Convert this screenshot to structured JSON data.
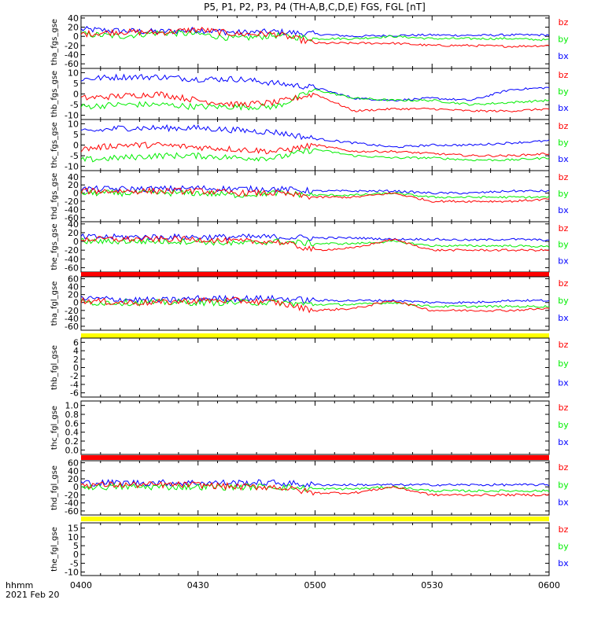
{
  "title": "P5, P1, P2, P3, P4 (TH-A,B,C,D,E) FGS, FGL [nT]",
  "time_axis": {
    "ticks": [
      "0400",
      "0430",
      "0500",
      "0530",
      "0600"
    ],
    "label": "hhmm",
    "date": "2021 Feb 20"
  },
  "legend": {
    "bz": "bz",
    "by": "by",
    "bx": "bx"
  },
  "colors": {
    "bx": "#0000ff",
    "by": "#00ee00",
    "bz": "#ff0000",
    "red_bar": "#ff0000",
    "yellow_bar": "#ffff00"
  },
  "chart_data": [
    {
      "type": "line",
      "label": "tha_fgs_gse",
      "ylim": [
        -70,
        45
      ],
      "yticks": [
        "40",
        "20",
        "0",
        "-20",
        "-40",
        "-60"
      ],
      "x": [
        "0400",
        "0410",
        "0420",
        "0430",
        "0440",
        "0450",
        "0500",
        "0510",
        "0520",
        "0530",
        "0540",
        "0550",
        "0600"
      ],
      "series": [
        {
          "name": "bx",
          "values": [
            15,
            12,
            10,
            14,
            8,
            10,
            5,
            0,
            2,
            3,
            2,
            3,
            3
          ]
        },
        {
          "name": "by",
          "values": [
            5,
            0,
            8,
            5,
            -5,
            2,
            -5,
            -5,
            0,
            -5,
            -5,
            -5,
            -8
          ]
        },
        {
          "name": "bz",
          "values": [
            5,
            10,
            8,
            15,
            5,
            5,
            -15,
            -15,
            -15,
            -20,
            -20,
            -22,
            -20
          ]
        }
      ],
      "bar_after": null
    },
    {
      "type": "line",
      "label": "thb_fgs_gse",
      "ylim": [
        -12,
        12
      ],
      "yticks": [
        "10",
        "5",
        "0",
        "-5",
        "-10"
      ],
      "x": [
        "0400",
        "0410",
        "0420",
        "0430",
        "0440",
        "0450",
        "0500",
        "0510",
        "0520",
        "0530",
        "0540",
        "0550",
        "0600"
      ],
      "series": [
        {
          "name": "bx",
          "values": [
            7,
            8,
            8,
            7,
            7,
            5,
            3,
            -2,
            -3,
            -2,
            -3,
            2,
            3
          ]
        },
        {
          "name": "by",
          "values": [
            -6,
            -5,
            -5,
            -6,
            -6,
            -6,
            2,
            -2,
            -3,
            -3,
            -5,
            -4,
            -3
          ]
        },
        {
          "name": "bz",
          "values": [
            -2,
            -1,
            0,
            -3,
            -5,
            -4,
            0,
            -8,
            -7,
            -7,
            -8,
            -8,
            -7
          ]
        }
      ],
      "bar_after": null
    },
    {
      "type": "line",
      "label": "thc_fgs_gse",
      "ylim": [
        -12,
        12
      ],
      "yticks": [
        "10",
        "5",
        "0",
        "-5",
        "-10"
      ],
      "x": [
        "0400",
        "0410",
        "0420",
        "0430",
        "0440",
        "0450",
        "0500",
        "0510",
        "0520",
        "0530",
        "0540",
        "0550",
        "0600"
      ],
      "series": [
        {
          "name": "bx",
          "values": [
            6,
            8,
            8,
            8,
            7,
            6,
            3,
            1,
            -1,
            0,
            0,
            1,
            2
          ]
        },
        {
          "name": "by",
          "values": [
            -7,
            -6,
            -5,
            -5,
            -6,
            -6,
            -2,
            -5,
            -6,
            -6,
            -7,
            -7,
            -6
          ]
        },
        {
          "name": "bz",
          "values": [
            -2,
            0,
            0,
            -1,
            -2,
            -3,
            0,
            -3,
            -3,
            -4,
            -5,
            -5,
            -4
          ]
        }
      ],
      "bar_after": null
    },
    {
      "type": "line",
      "label": "thd_fgs_gse",
      "ylim": [
        -70,
        55
      ],
      "yticks": [
        "40",
        "20",
        "0",
        "-20",
        "-40",
        "-60"
      ],
      "x": [
        "0400",
        "0410",
        "0420",
        "0430",
        "0440",
        "0450",
        "0500",
        "0510",
        "0520",
        "0530",
        "0540",
        "0550",
        "0600"
      ],
      "series": [
        {
          "name": "bx",
          "values": [
            10,
            10,
            10,
            12,
            10,
            10,
            5,
            5,
            5,
            0,
            0,
            5,
            5
          ]
        },
        {
          "name": "by",
          "values": [
            0,
            0,
            0,
            0,
            -5,
            0,
            -5,
            -5,
            0,
            -10,
            -10,
            -10,
            -10
          ]
        },
        {
          "name": "bz",
          "values": [
            5,
            5,
            5,
            5,
            0,
            0,
            -10,
            -10,
            0,
            -20,
            -20,
            -20,
            -15
          ]
        }
      ],
      "bar_after": null
    },
    {
      "type": "line",
      "label": "the_fgs_gse",
      "ylim": [
        -70,
        45
      ],
      "yticks": [
        "40",
        "20",
        "0",
        "-20",
        "-40",
        "-60"
      ],
      "x": [
        "0400",
        "0410",
        "0420",
        "0430",
        "0440",
        "0450",
        "0500",
        "0510",
        "0520",
        "0530",
        "0540",
        "0550",
        "0600"
      ],
      "series": [
        {
          "name": "bx",
          "values": [
            10,
            10,
            10,
            10,
            10,
            10,
            8,
            8,
            5,
            5,
            3,
            5,
            3
          ]
        },
        {
          "name": "by",
          "values": [
            0,
            0,
            0,
            0,
            -5,
            0,
            -5,
            -5,
            0,
            -10,
            -10,
            -10,
            -12
          ]
        },
        {
          "name": "bz",
          "values": [
            5,
            5,
            5,
            5,
            0,
            0,
            -20,
            -15,
            5,
            -20,
            -20,
            -20,
            -20
          ]
        }
      ],
      "bar_after": "red_bar"
    },
    {
      "type": "line",
      "label": "tha_fgl_gse",
      "ylim": [
        -70,
        65
      ],
      "yticks": [
        "60",
        "40",
        "20",
        "0",
        "-20",
        "-40",
        "-60"
      ],
      "x": [
        "0400",
        "0410",
        "0420",
        "0430",
        "0440",
        "0450",
        "0500",
        "0510",
        "0520",
        "0530",
        "0540",
        "0550",
        "0600"
      ],
      "series": [
        {
          "name": "bx",
          "values": [
            10,
            8,
            5,
            10,
            10,
            10,
            5,
            5,
            5,
            0,
            0,
            5,
            5
          ]
        },
        {
          "name": "by",
          "values": [
            0,
            0,
            0,
            0,
            0,
            0,
            -5,
            -5,
            0,
            -10,
            -10,
            -10,
            -10
          ]
        },
        {
          "name": "bz",
          "values": [
            5,
            0,
            0,
            5,
            5,
            0,
            -20,
            -15,
            5,
            -20,
            -20,
            -20,
            -15
          ]
        }
      ],
      "bar_after": "yellow_bar"
    },
    {
      "type": "line",
      "label": "thb_fgl_gse",
      "ylim": [
        -7,
        7
      ],
      "yticks": [
        "6",
        "4",
        "2",
        "0",
        "-2",
        "-4",
        "-6"
      ],
      "x": [],
      "series": [],
      "bar_after": null
    },
    {
      "type": "line",
      "label": "thc_fgl_gse",
      "ylim": [
        -0.1,
        1.1
      ],
      "yticks": [
        "1.0",
        "0.8",
        "0.6",
        "0.4",
        "0.2",
        "0.0"
      ],
      "x": [],
      "series": [],
      "bar_after": "red_bar"
    },
    {
      "type": "line",
      "label": "thd_fgl_gse",
      "ylim": [
        -70,
        65
      ],
      "yticks": [
        "60",
        "40",
        "20",
        "0",
        "-20",
        "-40",
        "-60"
      ],
      "x": [
        "0400",
        "0410",
        "0420",
        "0430",
        "0440",
        "0450",
        "0500",
        "0510",
        "0520",
        "0530",
        "0540",
        "0550",
        "0600"
      ],
      "series": [
        {
          "name": "bx",
          "values": [
            10,
            10,
            10,
            10,
            10,
            10,
            5,
            5,
            5,
            5,
            5,
            5,
            5
          ]
        },
        {
          "name": "by",
          "values": [
            0,
            0,
            0,
            0,
            0,
            0,
            -5,
            -5,
            0,
            -10,
            -10,
            -10,
            -10
          ]
        },
        {
          "name": "bz",
          "values": [
            5,
            5,
            5,
            5,
            0,
            0,
            -15,
            -15,
            0,
            -20,
            -20,
            -20,
            -20
          ]
        }
      ],
      "bar_after": "yellow_bar"
    },
    {
      "type": "line",
      "label": "the_fgl_gse",
      "ylim": [
        -12,
        18
      ],
      "yticks": [
        "15",
        "10",
        "5",
        "0",
        "-5",
        "-10"
      ],
      "x": [],
      "series": [],
      "bar_after": null
    }
  ]
}
